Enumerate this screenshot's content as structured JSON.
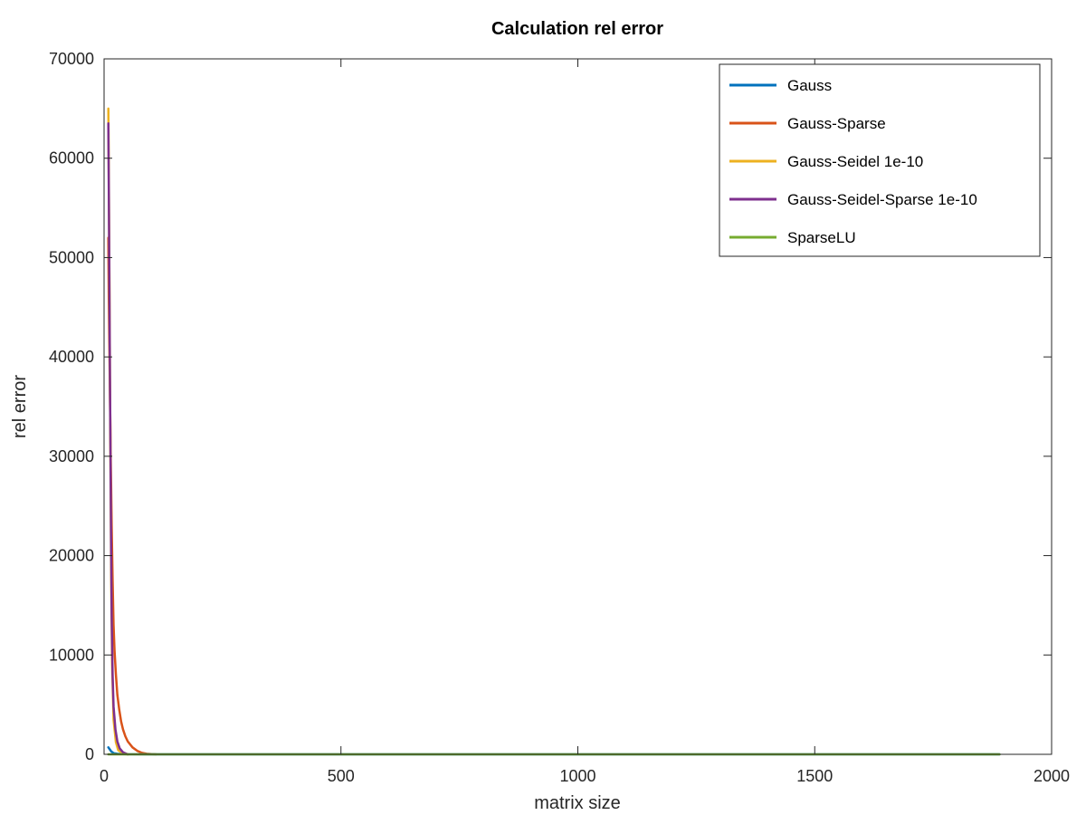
{
  "chart_data": {
    "type": "line",
    "title": "Calculation rel error",
    "xlabel": "matrix size",
    "ylabel": "rel error",
    "xlim": [
      0,
      2000
    ],
    "ylim": [
      0,
      70000
    ],
    "xticks": [
      0,
      500,
      1000,
      1500,
      2000
    ],
    "yticks": [
      0,
      10000,
      20000,
      30000,
      40000,
      50000,
      60000,
      70000
    ],
    "grid": false,
    "legend_position": "top-right",
    "series": [
      {
        "name": "Gauss",
        "color": "#0072bd",
        "x": [
          9,
          12,
          15,
          20,
          30,
          50,
          100,
          500,
          1000,
          1500,
          1890
        ],
        "y": [
          700,
          500,
          300,
          120,
          40,
          10,
          0,
          0,
          0,
          0,
          0
        ]
      },
      {
        "name": "Gauss-Sparse",
        "color": "#d95319",
        "x": [
          9,
          10,
          12,
          14,
          16,
          18,
          20,
          22,
          25,
          28,
          32,
          36,
          40,
          45,
          50,
          60,
          70,
          80,
          90,
          100,
          110
        ],
        "y": [
          52000,
          46000,
          38000,
          30000,
          23000,
          17500,
          13000,
          10500,
          8000,
          6000,
          4500,
          3300,
          2500,
          1800,
          1300,
          700,
          350,
          150,
          60,
          20,
          0
        ]
      },
      {
        "name": "Gauss-Seidel 1e-10",
        "color": "#edb120",
        "x": [
          9,
          10,
          11,
          12,
          13,
          14,
          15,
          17,
          20,
          25,
          30,
          40,
          50
        ],
        "y": [
          65000,
          58000,
          50000,
          42000,
          33000,
          26000,
          18000,
          9000,
          3500,
          1200,
          400,
          100,
          0
        ]
      },
      {
        "name": "Gauss-Seidel-Sparse 1e-10",
        "color": "#7e2f8e",
        "x": [
          9,
          10,
          11,
          12,
          13,
          14,
          15,
          16,
          18,
          20,
          24,
          28,
          33,
          40,
          50
        ],
        "y": [
          63500,
          57000,
          49000,
          41000,
          34000,
          27000,
          20000,
          14000,
          8000,
          4800,
          2500,
          1300,
          600,
          200,
          0
        ]
      },
      {
        "name": "SparseLU",
        "color": "#77ac30",
        "x": [
          9,
          50,
          100,
          500,
          1000,
          1500,
          1890
        ],
        "y": [
          0,
          0,
          0,
          0,
          0,
          0,
          0
        ]
      }
    ]
  }
}
